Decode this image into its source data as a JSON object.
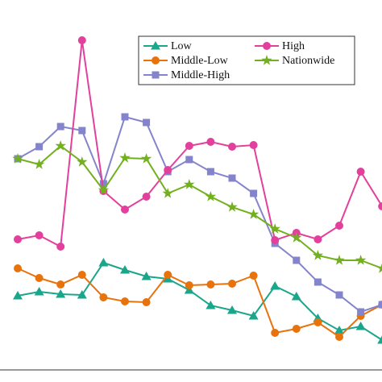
{
  "chart_data": {
    "type": "line",
    "categories": [
      null,
      null,
      null,
      null,
      null,
      null,
      null,
      null,
      null,
      null,
      null,
      null,
      null,
      null,
      null,
      null,
      null,
      null
    ],
    "ylim": [
      0,
      460
    ],
    "legend": "upper right",
    "series": [
      {
        "name": "Low",
        "color": "#1aa68a",
        "marker": "triangle",
        "values": [
          93,
          98,
          95,
          94,
          134,
          125,
          117,
          114,
          100,
          81,
          75,
          68,
          105,
          92,
          65,
          50,
          55,
          38
        ]
      },
      {
        "name": "Middle-Low",
        "color": "#e8720c",
        "marker": "circle",
        "values": [
          127,
          115,
          107,
          119,
          91,
          86,
          85,
          119,
          106,
          107,
          108,
          118,
          47,
          52,
          60,
          42,
          68,
          82
        ]
      },
      {
        "name": "Middle-High",
        "color": "#8484cc",
        "marker": "square",
        "values": [
          263,
          278,
          303,
          298,
          232,
          315,
          308,
          247,
          262,
          247,
          239,
          220,
          158,
          137,
          110,
          94,
          73,
          82
        ]
      },
      {
        "name": "High",
        "color": "#e2409c",
        "marker": "circle",
        "values": [
          163,
          168,
          154,
          410,
          223,
          200,
          216,
          249,
          279,
          284,
          278,
          280,
          162,
          171,
          163,
          180,
          247,
          204
        ]
      },
      {
        "name": "Nationwide",
        "color": "#72b01e",
        "marker": "star",
        "values": [
          263,
          256,
          279,
          259,
          224,
          264,
          263,
          220,
          231,
          216,
          203,
          194,
          176,
          165,
          143,
          137,
          137,
          127
        ]
      }
    ]
  }
}
